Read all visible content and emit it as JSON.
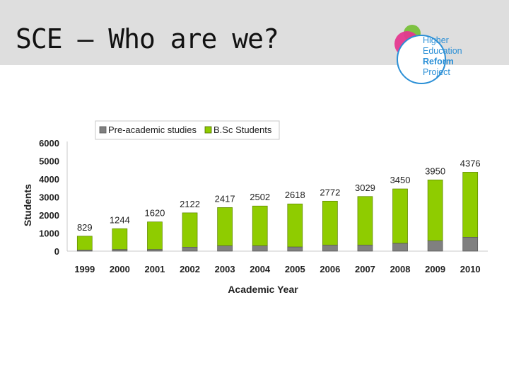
{
  "slide": {
    "title": "SCE – Who are we?"
  },
  "logo": {
    "lines": [
      "Higher",
      "Education",
      "Reform",
      "Project"
    ]
  },
  "colors": {
    "pre_academic": "#808080",
    "bsc": "#8fcc00",
    "logo_pink": "#e4388f",
    "logo_green": "#7ec242",
    "logo_blue": "#2a8fd6"
  },
  "chart_data": {
    "type": "bar",
    "stacked": true,
    "categories": [
      "1999",
      "2000",
      "2001",
      "2002",
      "2003",
      "2004",
      "2005",
      "2006",
      "2007",
      "2008",
      "2009",
      "2010"
    ],
    "series": [
      {
        "name": "Pre-academic studies",
        "values": [
          60,
          90,
          90,
          220,
          290,
          290,
          230,
          330,
          330,
          430,
          570,
          770
        ]
      },
      {
        "name": "B.Sc Students",
        "values": [
          769,
          1154,
          1530,
          1902,
          2127,
          2212,
          2388,
          2442,
          2699,
          3020,
          3380,
          3606
        ]
      }
    ],
    "totals": [
      "829",
      "1244",
      "1620",
      "2122",
      "2417",
      "2502",
      "2618",
      "2772",
      "3029",
      "3450",
      "3950",
      "4376"
    ],
    "xlabel": "Academic Year",
    "ylabel": "Students",
    "ylim": [
      0,
      6000
    ],
    "yticks": [
      "0",
      "1000",
      "2000",
      "3000",
      "4000",
      "5000",
      "6000"
    ],
    "legend_position": "top",
    "grid": false
  }
}
